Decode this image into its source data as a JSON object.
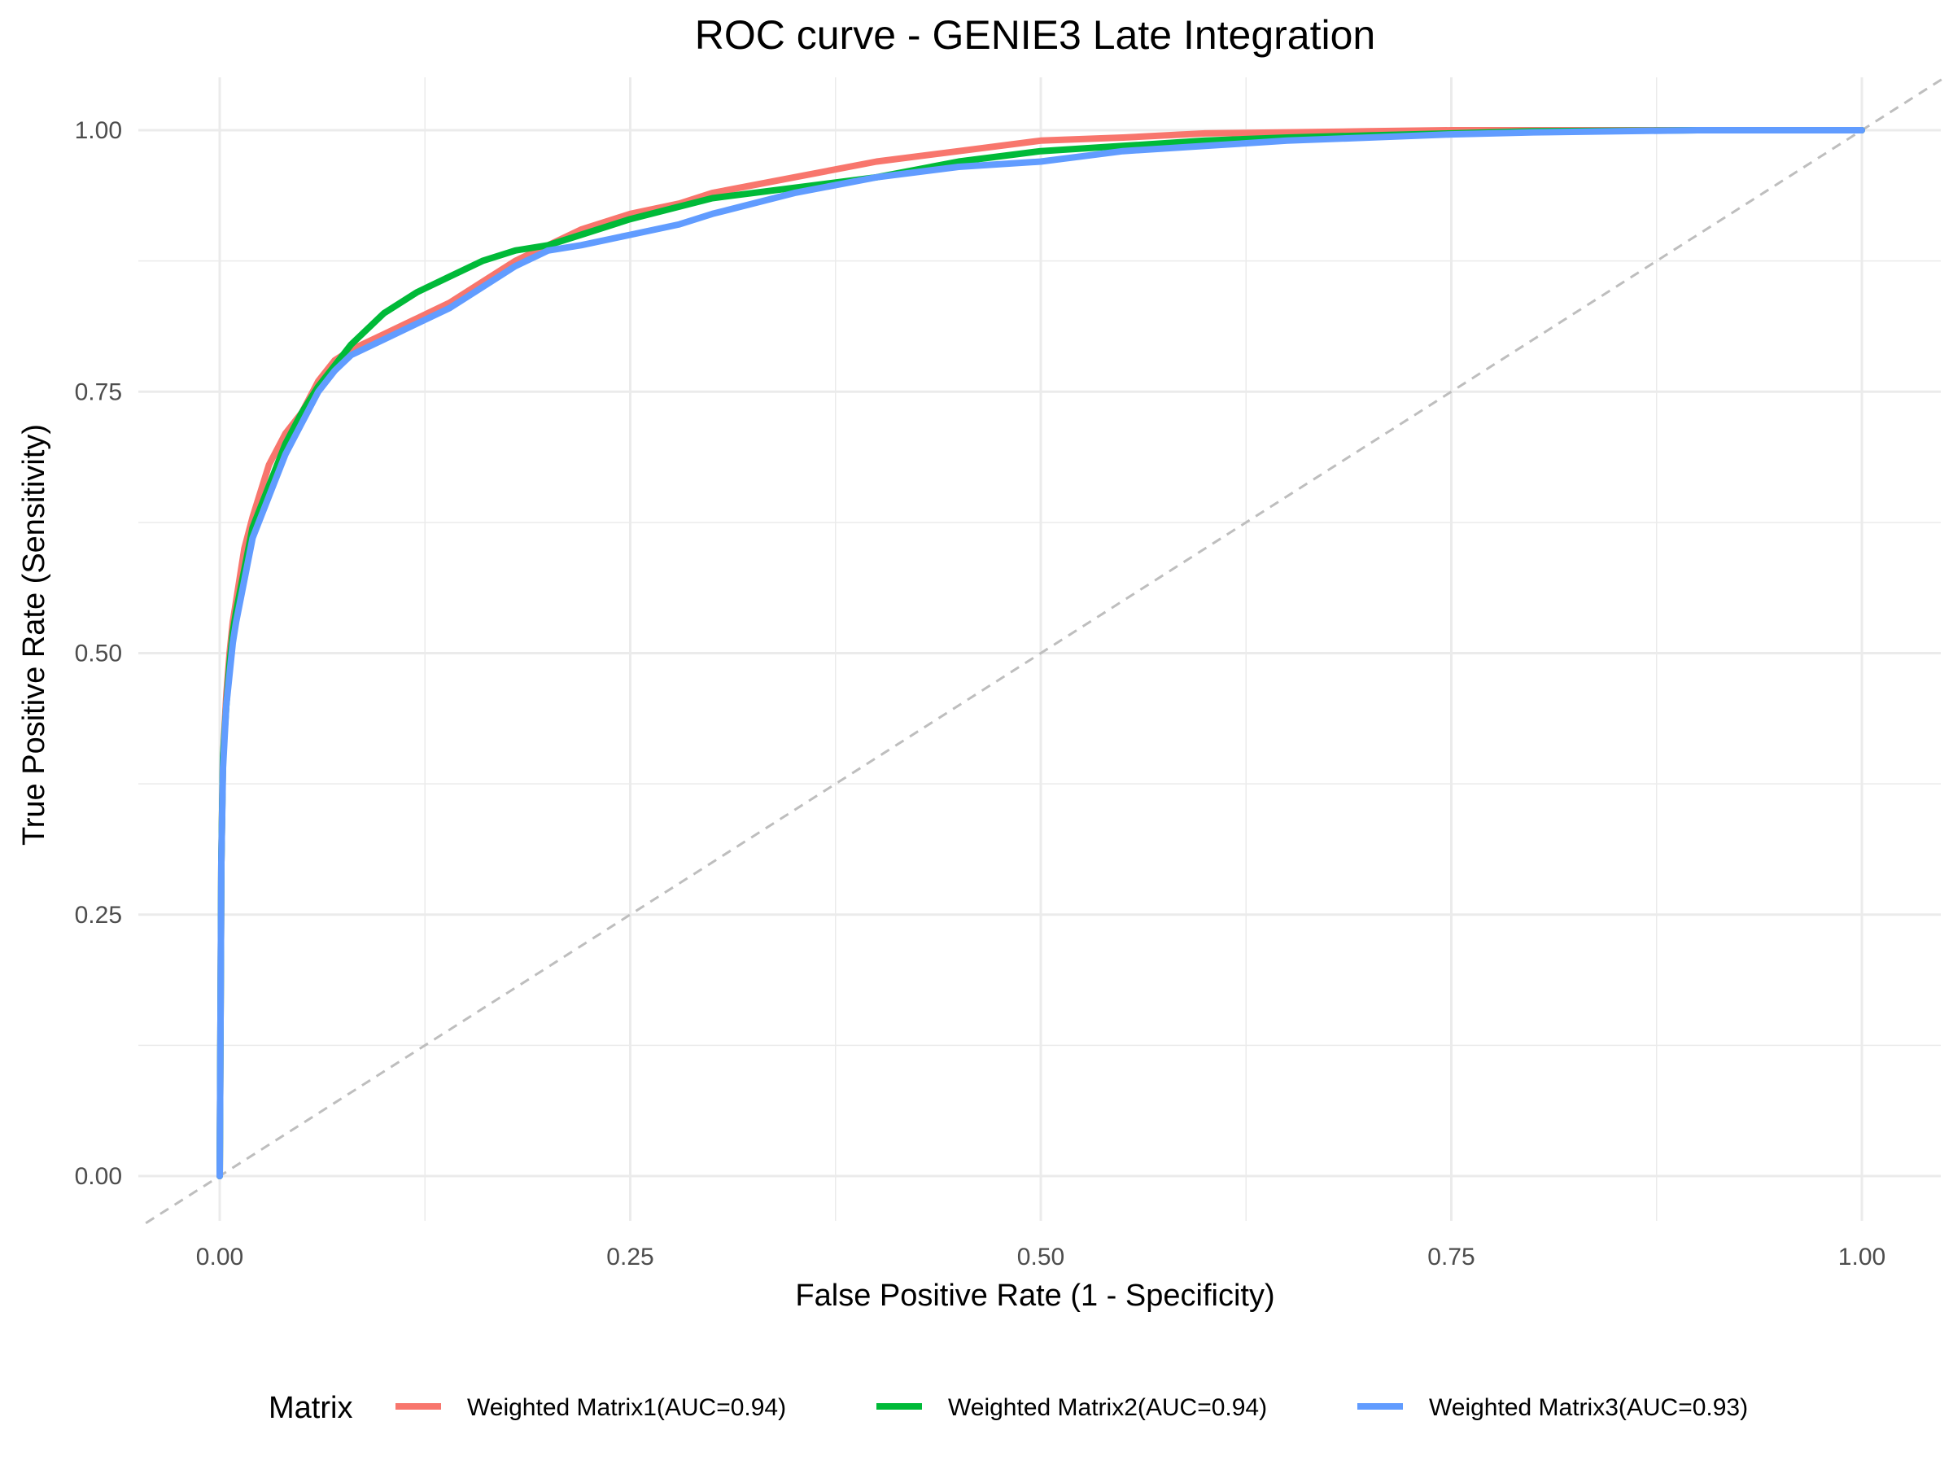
{
  "chart_data": {
    "type": "line",
    "title": "ROC curve - GENIE3 Late Integration",
    "xlabel": "False Positive Rate (1 - Specificity)",
    "ylabel": "True Positive Rate (Sensitivity)",
    "xlim": [
      -0.045,
      1.05
    ],
    "ylim": [
      -0.045,
      1.05
    ],
    "x_ticks": [
      {
        "value": 0.0,
        "label": "0.00"
      },
      {
        "value": 0.25,
        "label": "0.25"
      },
      {
        "value": 0.5,
        "label": "0.50"
      },
      {
        "value": 0.75,
        "label": "0.75"
      },
      {
        "value": 1.0,
        "label": "1.00"
      }
    ],
    "y_ticks": [
      {
        "value": 0.0,
        "label": "0.00"
      },
      {
        "value": 0.25,
        "label": "0.25"
      },
      {
        "value": 0.5,
        "label": "0.50"
      },
      {
        "value": 0.75,
        "label": "0.75"
      },
      {
        "value": 1.0,
        "label": "1.00"
      }
    ],
    "grid": true,
    "legend": {
      "title": "Matrix",
      "position": "bottom"
    },
    "reference_line": {
      "x": [
        -0.045,
        1.05
      ],
      "y": [
        -0.045,
        1.05
      ],
      "style": "dashed",
      "color": "#bebebe"
    },
    "series": [
      {
        "name": "Weighted Matrix1(AUC=0.94)",
        "color": "#F8766D",
        "x": [
          0,
          0.001,
          0.002,
          0.004,
          0.006,
          0.008,
          0.01,
          0.015,
          0.02,
          0.03,
          0.04,
          0.05,
          0.06,
          0.07,
          0.08,
          0.1,
          0.12,
          0.14,
          0.16,
          0.18,
          0.2,
          0.22,
          0.25,
          0.28,
          0.3,
          0.35,
          0.4,
          0.45,
          0.5,
          0.55,
          0.6,
          0.65,
          0.7,
          0.75,
          0.8,
          0.9,
          1.0
        ],
        "y": [
          0,
          0.3,
          0.4,
          0.46,
          0.5,
          0.53,
          0.55,
          0.6,
          0.63,
          0.68,
          0.71,
          0.73,
          0.76,
          0.78,
          0.79,
          0.805,
          0.82,
          0.835,
          0.855,
          0.875,
          0.89,
          0.905,
          0.92,
          0.93,
          0.94,
          0.955,
          0.97,
          0.98,
          0.99,
          0.993,
          0.997,
          0.998,
          0.999,
          1.0,
          1.0,
          1.0,
          1.0
        ]
      },
      {
        "name": "Weighted Matrix2(AUC=0.94)",
        "color": "#00BA38",
        "x": [
          0,
          0.001,
          0.002,
          0.004,
          0.006,
          0.008,
          0.01,
          0.015,
          0.02,
          0.03,
          0.04,
          0.05,
          0.06,
          0.07,
          0.08,
          0.09,
          0.1,
          0.12,
          0.14,
          0.16,
          0.18,
          0.2,
          0.22,
          0.25,
          0.3,
          0.35,
          0.4,
          0.45,
          0.5,
          0.55,
          0.6,
          0.65,
          0.7,
          0.75,
          0.8,
          0.9,
          1.0
        ],
        "y": [
          0,
          0.3,
          0.4,
          0.45,
          0.49,
          0.52,
          0.54,
          0.58,
          0.62,
          0.66,
          0.7,
          0.73,
          0.755,
          0.775,
          0.795,
          0.81,
          0.825,
          0.845,
          0.86,
          0.875,
          0.885,
          0.89,
          0.9,
          0.915,
          0.935,
          0.945,
          0.955,
          0.97,
          0.98,
          0.985,
          0.99,
          0.993,
          0.995,
          0.997,
          0.999,
          1.0,
          1.0
        ]
      },
      {
        "name": "Weighted Matrix3(AUC=0.93)",
        "color": "#619CFF",
        "x": [
          0,
          0.001,
          0.002,
          0.004,
          0.006,
          0.008,
          0.01,
          0.015,
          0.02,
          0.03,
          0.04,
          0.05,
          0.06,
          0.07,
          0.08,
          0.1,
          0.12,
          0.14,
          0.16,
          0.18,
          0.2,
          0.22,
          0.25,
          0.28,
          0.3,
          0.35,
          0.4,
          0.45,
          0.5,
          0.55,
          0.6,
          0.65,
          0.7,
          0.75,
          0.8,
          0.9,
          1.0
        ],
        "y": [
          0,
          0.3,
          0.39,
          0.45,
          0.48,
          0.51,
          0.53,
          0.57,
          0.61,
          0.65,
          0.69,
          0.72,
          0.75,
          0.77,
          0.785,
          0.8,
          0.815,
          0.83,
          0.85,
          0.87,
          0.885,
          0.89,
          0.9,
          0.91,
          0.92,
          0.94,
          0.955,
          0.965,
          0.97,
          0.98,
          0.985,
          0.99,
          0.993,
          0.996,
          0.998,
          1.0,
          1.0
        ]
      }
    ]
  }
}
